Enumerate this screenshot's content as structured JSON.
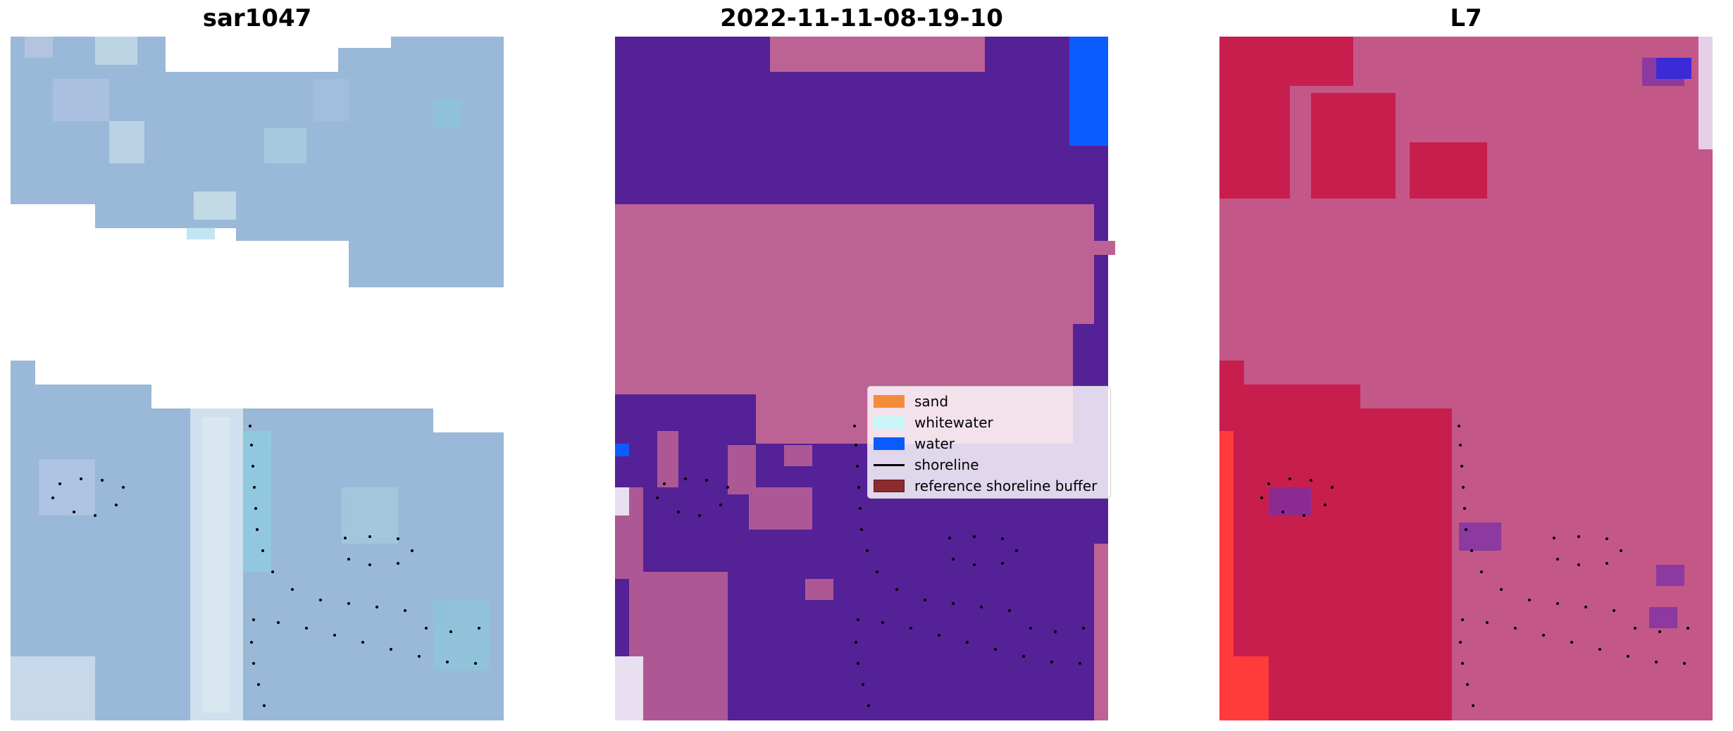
{
  "panels": {
    "left_title": "sar1047",
    "middle_title": "2022-11-11-08-19-10",
    "right_title": "L7"
  },
  "legend": {
    "items": [
      {
        "label": "sand",
        "color": "#f28c3b"
      },
      {
        "label": "whitewater",
        "color": "#c8f5f5"
      },
      {
        "label": "water",
        "color": "#0a5cff"
      },
      {
        "label": "shoreline",
        "color": "#000000"
      },
      {
        "label": "reference shoreline buffer",
        "color": "#8b2b2f"
      }
    ]
  },
  "colors": {
    "sar_base": "#9ab8d8",
    "class_purple": "#542196",
    "class_pink": "#bd6295",
    "l7_red": "#c81e4e",
    "l7_pink": "#c35888"
  }
}
